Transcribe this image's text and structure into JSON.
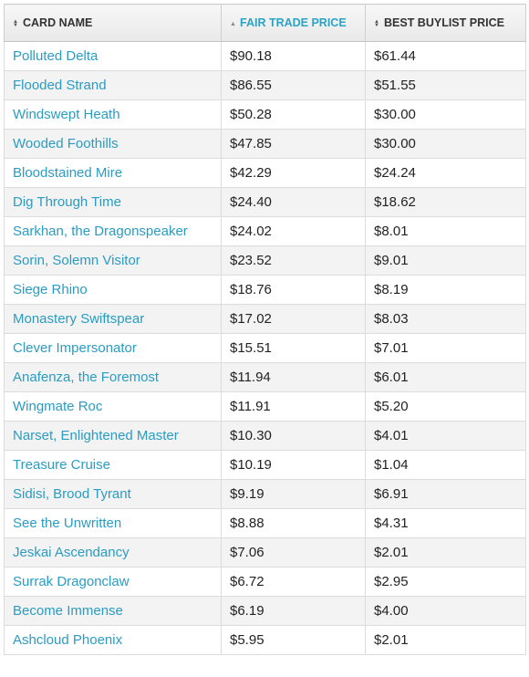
{
  "table": {
    "headers": {
      "card_name": "CARD NAME",
      "fair_trade_price": "FAIR TRADE PRICE",
      "best_buylist_price": "BEST BUYLIST PRICE"
    },
    "sort_icons": {
      "card_name": "sort-both-icon",
      "fair_trade_price": "sort-ascending-icon",
      "best_buylist_price": "sort-both-icon"
    },
    "active_sort_column": "fair_trade_price",
    "colors": {
      "link": "#2a9cc3",
      "active_header": "#2aa3c7"
    },
    "rows": [
      {
        "name": "Polluted Delta",
        "fair": "$90.18",
        "buylist": "$61.44"
      },
      {
        "name": "Flooded Strand",
        "fair": "$86.55",
        "buylist": "$51.55"
      },
      {
        "name": "Windswept Heath",
        "fair": "$50.28",
        "buylist": "$30.00"
      },
      {
        "name": "Wooded Foothills",
        "fair": "$47.85",
        "buylist": "$30.00"
      },
      {
        "name": "Bloodstained Mire",
        "fair": "$42.29",
        "buylist": "$24.24"
      },
      {
        "name": "Dig Through Time",
        "fair": "$24.40",
        "buylist": "$18.62"
      },
      {
        "name": "Sarkhan, the Dragonspeaker",
        "fair": "$24.02",
        "buylist": "$8.01"
      },
      {
        "name": "Sorin, Solemn Visitor",
        "fair": "$23.52",
        "buylist": "$9.01"
      },
      {
        "name": "Siege Rhino",
        "fair": "$18.76",
        "buylist": "$8.19"
      },
      {
        "name": "Monastery Swiftspear",
        "fair": "$17.02",
        "buylist": "$8.03"
      },
      {
        "name": "Clever Impersonator",
        "fair": "$15.51",
        "buylist": "$7.01"
      },
      {
        "name": "Anafenza, the Foremost",
        "fair": "$11.94",
        "buylist": "$6.01"
      },
      {
        "name": "Wingmate Roc",
        "fair": "$11.91",
        "buylist": "$5.20"
      },
      {
        "name": "Narset, Enlightened Master",
        "fair": "$10.30",
        "buylist": "$4.01"
      },
      {
        "name": "Treasure Cruise",
        "fair": "$10.19",
        "buylist": "$1.04"
      },
      {
        "name": "Sidisi, Brood Tyrant",
        "fair": "$9.19",
        "buylist": "$6.91"
      },
      {
        "name": "See the Unwritten",
        "fair": "$8.88",
        "buylist": "$4.31"
      },
      {
        "name": "Jeskai Ascendancy",
        "fair": "$7.06",
        "buylist": "$2.01"
      },
      {
        "name": "Surrak Dragonclaw",
        "fair": "$6.72",
        "buylist": "$2.95"
      },
      {
        "name": "Become Immense",
        "fair": "$6.19",
        "buylist": "$4.00"
      },
      {
        "name": "Ashcloud Phoenix",
        "fair": "$5.95",
        "buylist": "$2.01"
      }
    ]
  }
}
